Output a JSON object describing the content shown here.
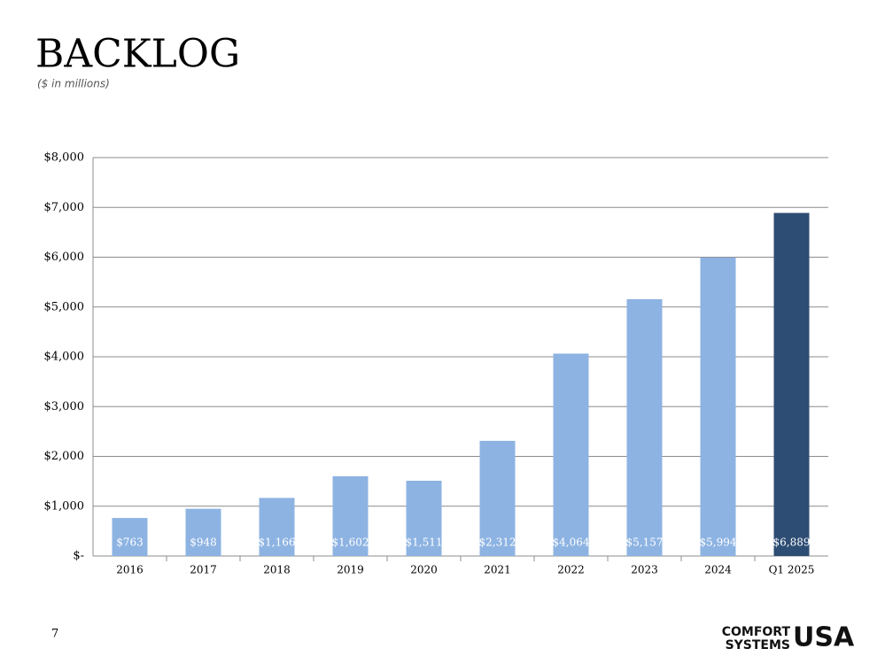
{
  "chart_data": {
    "type": "bar",
    "title": "BACKLOG",
    "subtitle": "($ in millions)",
    "categories": [
      "2016",
      "2017",
      "2018",
      "2019",
      "2020",
      "2021",
      "2022",
      "2023",
      "2024",
      "Q1 2025"
    ],
    "values": [
      763,
      948,
      1166,
      1602,
      1511,
      2312,
      4064,
      5157,
      5994,
      6889
    ],
    "value_labels": [
      "$763",
      "$948",
      "$1,166",
      "$1,602",
      "$1,511",
      "$2,312",
      "$4,064",
      "$5,157",
      "$5,994",
      "$6,889"
    ],
    "colors": [
      "#8db3e2",
      "#8db3e2",
      "#8db3e2",
      "#8db3e2",
      "#8db3e2",
      "#8db3e2",
      "#8db3e2",
      "#8db3e2",
      "#8db3e2",
      "#2e4d74"
    ],
    "ylim": [
      0,
      8000
    ],
    "yticks": [
      {
        "value": 0,
        "label": "$-"
      },
      {
        "value": 1000,
        "label": "$1,000"
      },
      {
        "value": 2000,
        "label": "$2,000"
      },
      {
        "value": 3000,
        "label": "$3,000"
      },
      {
        "value": 4000,
        "label": "$4,000"
      },
      {
        "value": 5000,
        "label": "$5,000"
      },
      {
        "value": 6000,
        "label": "$6,000"
      },
      {
        "value": 7000,
        "label": "$7,000"
      },
      {
        "value": 8000,
        "label": "$8,000"
      }
    ],
    "grid": true
  },
  "footer": {
    "page_number": "7",
    "logo": {
      "line1": "COMFORT",
      "line2": "SYSTEMS",
      "mark": "USA"
    }
  }
}
